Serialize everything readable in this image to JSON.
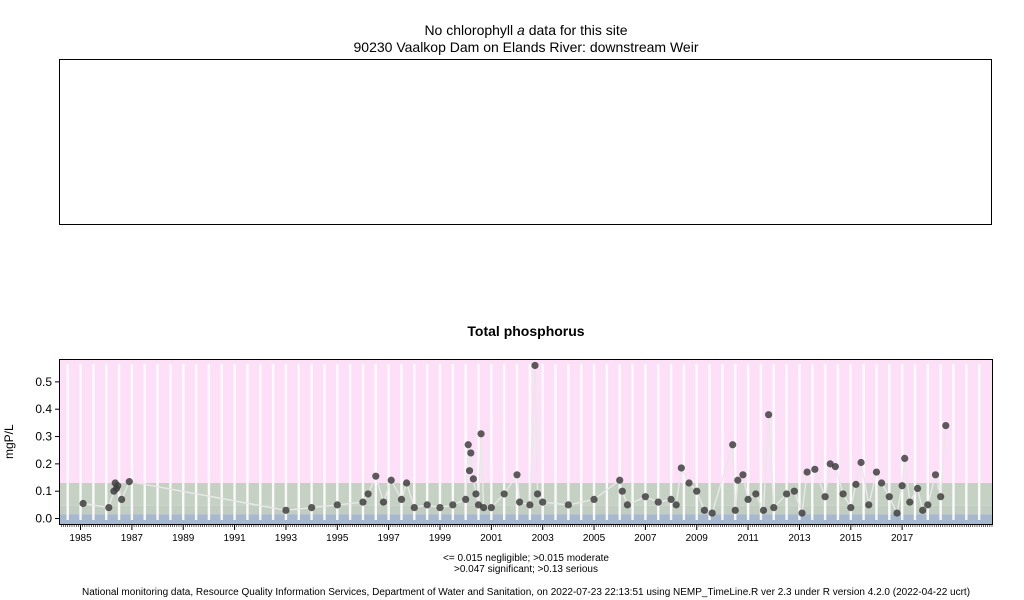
{
  "top_panel": {
    "title_prefix": "No chlorophyll",
    "title_italic": "a",
    "title_suffix": "data for this site",
    "subtitle": "90230 Vaalkop Dam on Elands River: downstream Weir"
  },
  "chart_data": {
    "type": "scatter",
    "title": "Total phosphorus",
    "ylabel": "mgP/L",
    "xlabel": "",
    "xlim": [
      1984.2,
      2020.5
    ],
    "ylim": [
      -0.02,
      0.58
    ],
    "y_ticks": [
      0.0,
      0.1,
      0.2,
      0.3,
      0.4,
      0.5
    ],
    "y_tick_labels": [
      "0.0",
      "0.1",
      "0.2",
      "0.3",
      "0.4",
      "0.5"
    ],
    "x_ticks": [
      1985,
      1987,
      1989,
      1991,
      1993,
      1995,
      1997,
      1999,
      2001,
      2003,
      2005,
      2007,
      2009,
      2011,
      2013,
      2015,
      2017
    ],
    "x_tick_labels": [
      "1985",
      "1987",
      "1989",
      "1991",
      "1993",
      "1995",
      "1997",
      "1999",
      "2001",
      "2003",
      "2005",
      "2007",
      "2009",
      "2011",
      "2013",
      "2015",
      "2017"
    ],
    "bands": [
      {
        "label": "serious",
        "from": 0.13,
        "to": 0.58,
        "color": "#fde0f8"
      },
      {
        "label": "significant",
        "from": 0.047,
        "to": 0.13,
        "color": "#c5d1c2"
      },
      {
        "label": "moderate",
        "from": 0.015,
        "to": 0.047,
        "color": "#c2cdc2"
      },
      {
        "label": "negligible",
        "from": -0.02,
        "to": 0.015,
        "color": "#a6b8cf"
      }
    ],
    "point_color": "#404040",
    "series": [
      {
        "x": [
          1985.1,
          1986.1,
          1986.3,
          1986.35,
          1986.4,
          1986.45,
          1986.6,
          1986.9,
          1993.0,
          1994.0,
          1995.0,
          1996.0,
          1996.2,
          1996.5,
          1996.8,
          1997.1,
          1997.5,
          1997.7,
          1998.0,
          1998.5,
          1999.0,
          1999.5,
          2000.0,
          2000.1,
          2000.15,
          2000.2,
          2000.3,
          2000.4,
          2000.5,
          2000.6,
          2000.7,
          2001.0,
          2001.5,
          2002.0,
          2002.1,
          2002.5,
          2002.7,
          2002.8,
          2003.0,
          2004.0,
          2005.0,
          2006.0,
          2006.1,
          2006.3,
          2007.0,
          2007.5,
          2008.0,
          2008.2,
          2008.4,
          2008.7,
          2009.0,
          2009.3,
          2009.6,
          2010.4,
          2010.5,
          2010.6,
          2010.8,
          2011.0,
          2011.3,
          2011.6,
          2011.8,
          2012.0,
          2012.5,
          2012.8,
          2013.1,
          2013.3,
          2013.6,
          2014.0,
          2014.2,
          2014.4,
          2014.7,
          2015.0,
          2015.2,
          2015.4,
          2015.7,
          2016.0,
          2016.2,
          2016.5,
          2016.8,
          2017.0,
          2017.1,
          2017.3,
          2017.6,
          2017.8,
          2018.0,
          2018.3,
          2018.5,
          2018.7
        ],
        "y": [
          0.055,
          0.04,
          0.1,
          0.13,
          0.11,
          0.12,
          0.07,
          0.135,
          0.03,
          0.04,
          0.05,
          0.06,
          0.09,
          0.155,
          0.06,
          0.14,
          0.07,
          0.13,
          0.04,
          0.05,
          0.04,
          0.05,
          0.07,
          0.27,
          0.175,
          0.24,
          0.145,
          0.09,
          0.05,
          0.31,
          0.04,
          0.04,
          0.09,
          0.16,
          0.06,
          0.05,
          0.56,
          0.09,
          0.06,
          0.05,
          0.07,
          0.14,
          0.1,
          0.05,
          0.08,
          0.06,
          0.07,
          0.05,
          0.185,
          0.13,
          0.1,
          0.03,
          0.02,
          0.27,
          0.03,
          0.14,
          0.16,
          0.07,
          0.09,
          0.03,
          0.38,
          0.04,
          0.09,
          0.1,
          0.02,
          0.17,
          0.18,
          0.08,
          0.2,
          0.19,
          0.09,
          0.04,
          0.125,
          0.205,
          0.05,
          0.17,
          0.13,
          0.08,
          0.02,
          0.12,
          0.22,
          0.06,
          0.11,
          0.03,
          0.05,
          0.16,
          0.08,
          0.34
        ]
      }
    ]
  },
  "notes": {
    "line1": "<= 0.015 negligible; >0.015 moderate",
    "line2": ">0.047 significant; >0.13 serious"
  },
  "footer": "National monitoring data, Resource Quality Information Services, Department of Water and Sanitation, on 2022-07-23 22:13:51 using NEMP_TimeLine.R ver 2.3 under R version 4.2.0 (2022-04-22 ucrt)"
}
